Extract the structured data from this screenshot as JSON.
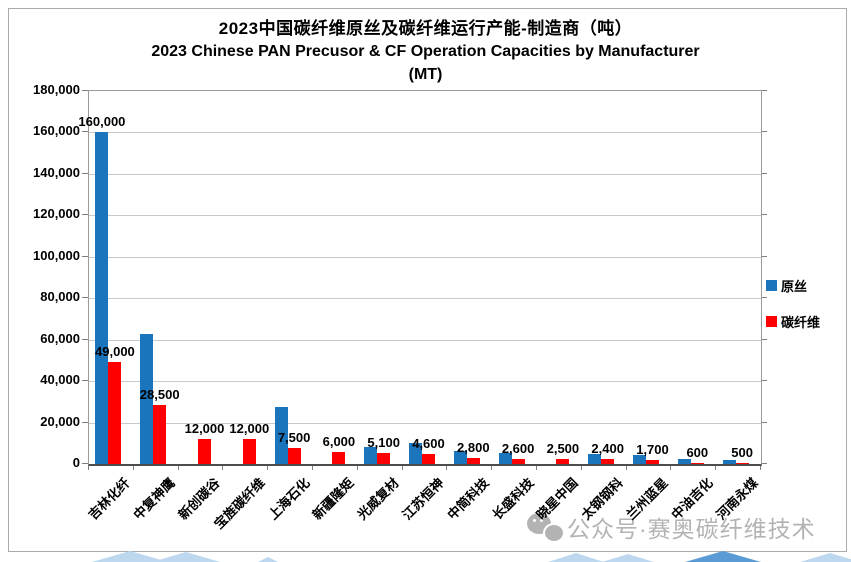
{
  "title": {
    "line1": "2023中国碳纤维原丝及碳纤维运行产能-制造商（吨）",
    "line2": "2023 Chinese PAN Precusor & CF Operation Capacities by Manufacturer",
    "line3": "(MT)"
  },
  "watermark": {
    "icon": "wechat-icon",
    "text": "公众号·赛奥碳纤维技术"
  },
  "colors": {
    "precursor_blue": "#1B75BC",
    "carbon_fiber_red": "#FE0000",
    "gridline": "#C9C9C9",
    "axis": "#7F7F7F",
    "watermark_gray": "#B3B3B3",
    "deco_light_blue": "#BDD7EE",
    "deco_medium_blue": "#5B9BD5"
  },
  "chart_data": {
    "type": "bar",
    "title": "2023中国碳纤维原丝及碳纤维运行产能-制造商（吨） / 2023 Chinese PAN Precusor & CF Operation Capacities by Manufacturer (MT)",
    "categories": [
      "吉林化纤",
      "中复神鹰",
      "新创碳谷",
      "宝旌碳纤维",
      "上海石化",
      "新疆隆矩",
      "光威复材",
      "江苏恒神",
      "中简科技",
      "长盛科技",
      "晓星中国",
      "太钢钢科",
      "兰州蓝星",
      "中油吉化",
      "河南永煤"
    ],
    "series": [
      {
        "name": "原丝",
        "color_key": "precursor_blue",
        "values": [
          160000,
          62500,
          0,
          0,
          27500,
          0,
          8000,
          10000,
          6500,
          5500,
          0,
          5000,
          4200,
          2300,
          1900
        ],
        "labels": [
          "160,000",
          "",
          "",
          "",
          "",
          "",
          "",
          "",
          "",
          "",
          "",
          "",
          "",
          "",
          ""
        ]
      },
      {
        "name": "碳纤维",
        "color_key": "carbon_fiber_red",
        "values": [
          49000,
          28500,
          12000,
          12000,
          7500,
          6000,
          5100,
          4600,
          2800,
          2600,
          2500,
          2400,
          1700,
          600,
          500
        ],
        "labels": [
          "49,000",
          "28,500",
          "12,000",
          "12,000",
          "7,500",
          "6,000",
          "5,100",
          "4,600",
          "2,800",
          "2,600",
          "2,500",
          "2,400",
          "1,700",
          "600",
          "500"
        ]
      }
    ],
    "ylim": [
      0,
      180000
    ],
    "ytick_step": 20000,
    "ytick_labels": [
      "0",
      "20,000",
      "40,000",
      "60,000",
      "80,000",
      "100,000",
      "120,000",
      "140,000",
      "160,000",
      "180,000"
    ],
    "ylabel": "",
    "xlabel": "",
    "grid": true,
    "legend": [
      "原丝",
      "碳纤维"
    ],
    "legend_position": "right"
  }
}
